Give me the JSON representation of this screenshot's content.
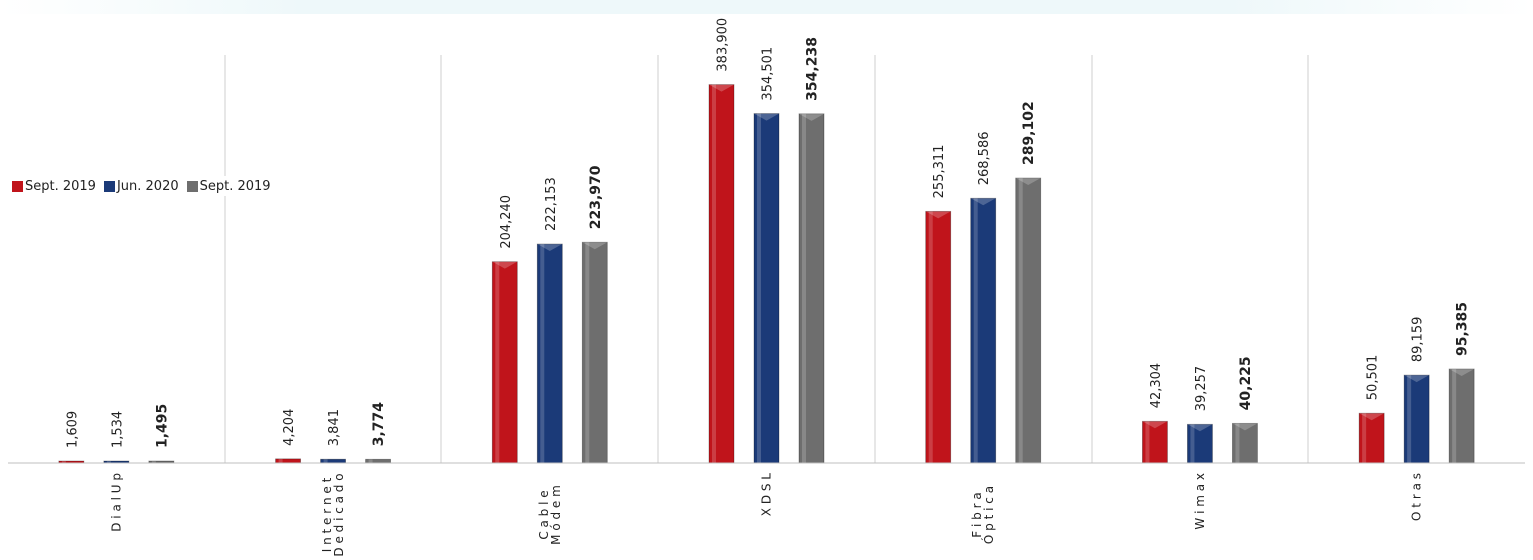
{
  "chart_data": {
    "type": "bar",
    "title": "",
    "xlabel": "",
    "ylabel": "",
    "ylim": [
      0,
      420000
    ],
    "grid": false,
    "legend_position": "left",
    "categories": [
      "Dial Up",
      "Internet Dedicado",
      "Cable Módem",
      "XDSL",
      "Fibra Óptica",
      "Wimax",
      "Otras"
    ],
    "category_lines": [
      [
        "D i a l  U p"
      ],
      [
        "I n t e r n e t",
        "D e d i c a d o"
      ],
      [
        "C a b l e",
        "M ó d e m"
      ],
      [
        "X D S L"
      ],
      [
        "F i b r a",
        "Ó p t i c a"
      ],
      [
        "W i m a x"
      ],
      [
        "O t r a s"
      ]
    ],
    "series": [
      {
        "name": "Sept. 2019",
        "color": "#c0141b",
        "values": [
          1609,
          4204,
          204240,
          383900,
          255311,
          42304,
          50501
        ],
        "labels": [
          "1,609",
          "4,204",
          "204,240",
          "383,900",
          "255,311",
          "42,304",
          "50,501"
        ]
      },
      {
        "name": "Jun. 2020",
        "color": "#1b3a78",
        "values": [
          1534,
          3841,
          222153,
          354501,
          268586,
          39257,
          89159
        ],
        "labels": [
          "1,534",
          "3,841",
          "222,153",
          "354,501",
          "268,586",
          "39,257",
          "89,159"
        ]
      },
      {
        "name": "Sept. 2019",
        "color": "#6e6e6e",
        "values": [
          1495,
          3774,
          223970,
          354238,
          289102,
          40225,
          95385
        ],
        "labels": [
          "1,495",
          "3,774",
          "223,970",
          "354,238",
          "289,102",
          "40,225",
          "95,385"
        ]
      }
    ]
  }
}
